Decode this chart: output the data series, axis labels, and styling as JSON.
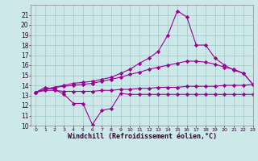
{
  "x_hours": [
    0,
    1,
    2,
    3,
    4,
    5,
    6,
    7,
    8,
    9,
    10,
    11,
    12,
    13,
    14,
    15,
    16,
    17,
    18,
    19,
    20,
    21,
    22,
    23
  ],
  "line1": [
    13.3,
    13.8,
    13.6,
    13.1,
    12.2,
    12.2,
    10.1,
    11.5,
    11.7,
    13.2,
    13.1,
    13.1,
    13.1,
    13.1,
    13.1,
    13.1,
    13.1,
    13.1,
    13.1,
    13.1,
    13.1,
    13.1,
    13.1,
    13.1
  ],
  "line2": [
    13.3,
    13.5,
    13.5,
    13.4,
    13.4,
    13.4,
    13.4,
    13.5,
    13.5,
    13.6,
    13.6,
    13.7,
    13.7,
    13.8,
    13.8,
    13.8,
    13.9,
    13.9,
    13.9,
    13.9,
    14.0,
    14.0,
    14.0,
    14.1
  ],
  "line3": [
    13.3,
    13.6,
    13.8,
    13.9,
    14.0,
    14.1,
    14.2,
    14.4,
    14.6,
    14.8,
    15.1,
    15.3,
    15.6,
    15.8,
    16.0,
    16.2,
    16.4,
    16.4,
    16.3,
    16.1,
    15.8,
    15.6,
    15.2,
    14.1
  ],
  "line4": [
    13.3,
    13.6,
    13.8,
    14.0,
    14.2,
    14.3,
    14.4,
    14.6,
    14.8,
    15.2,
    15.6,
    16.2,
    16.7,
    17.4,
    19.0,
    21.4,
    20.8,
    18.0,
    18.0,
    16.7,
    16.0,
    15.5,
    15.2,
    14.1
  ],
  "line_color": "#990099",
  "bg_color": "#cce8e8",
  "grid_color": "#aacccc",
  "xlabel": "Windchill (Refroidissement éolien,°C)",
  "ylim": [
    10,
    22
  ],
  "xlim": [
    -0.5,
    23
  ],
  "yticks": [
    10,
    11,
    12,
    13,
    14,
    15,
    16,
    17,
    18,
    19,
    20,
    21
  ],
  "xticks": [
    0,
    1,
    2,
    3,
    4,
    5,
    6,
    7,
    8,
    9,
    10,
    11,
    12,
    13,
    14,
    15,
    16,
    17,
    18,
    19,
    20,
    21,
    22,
    23
  ]
}
